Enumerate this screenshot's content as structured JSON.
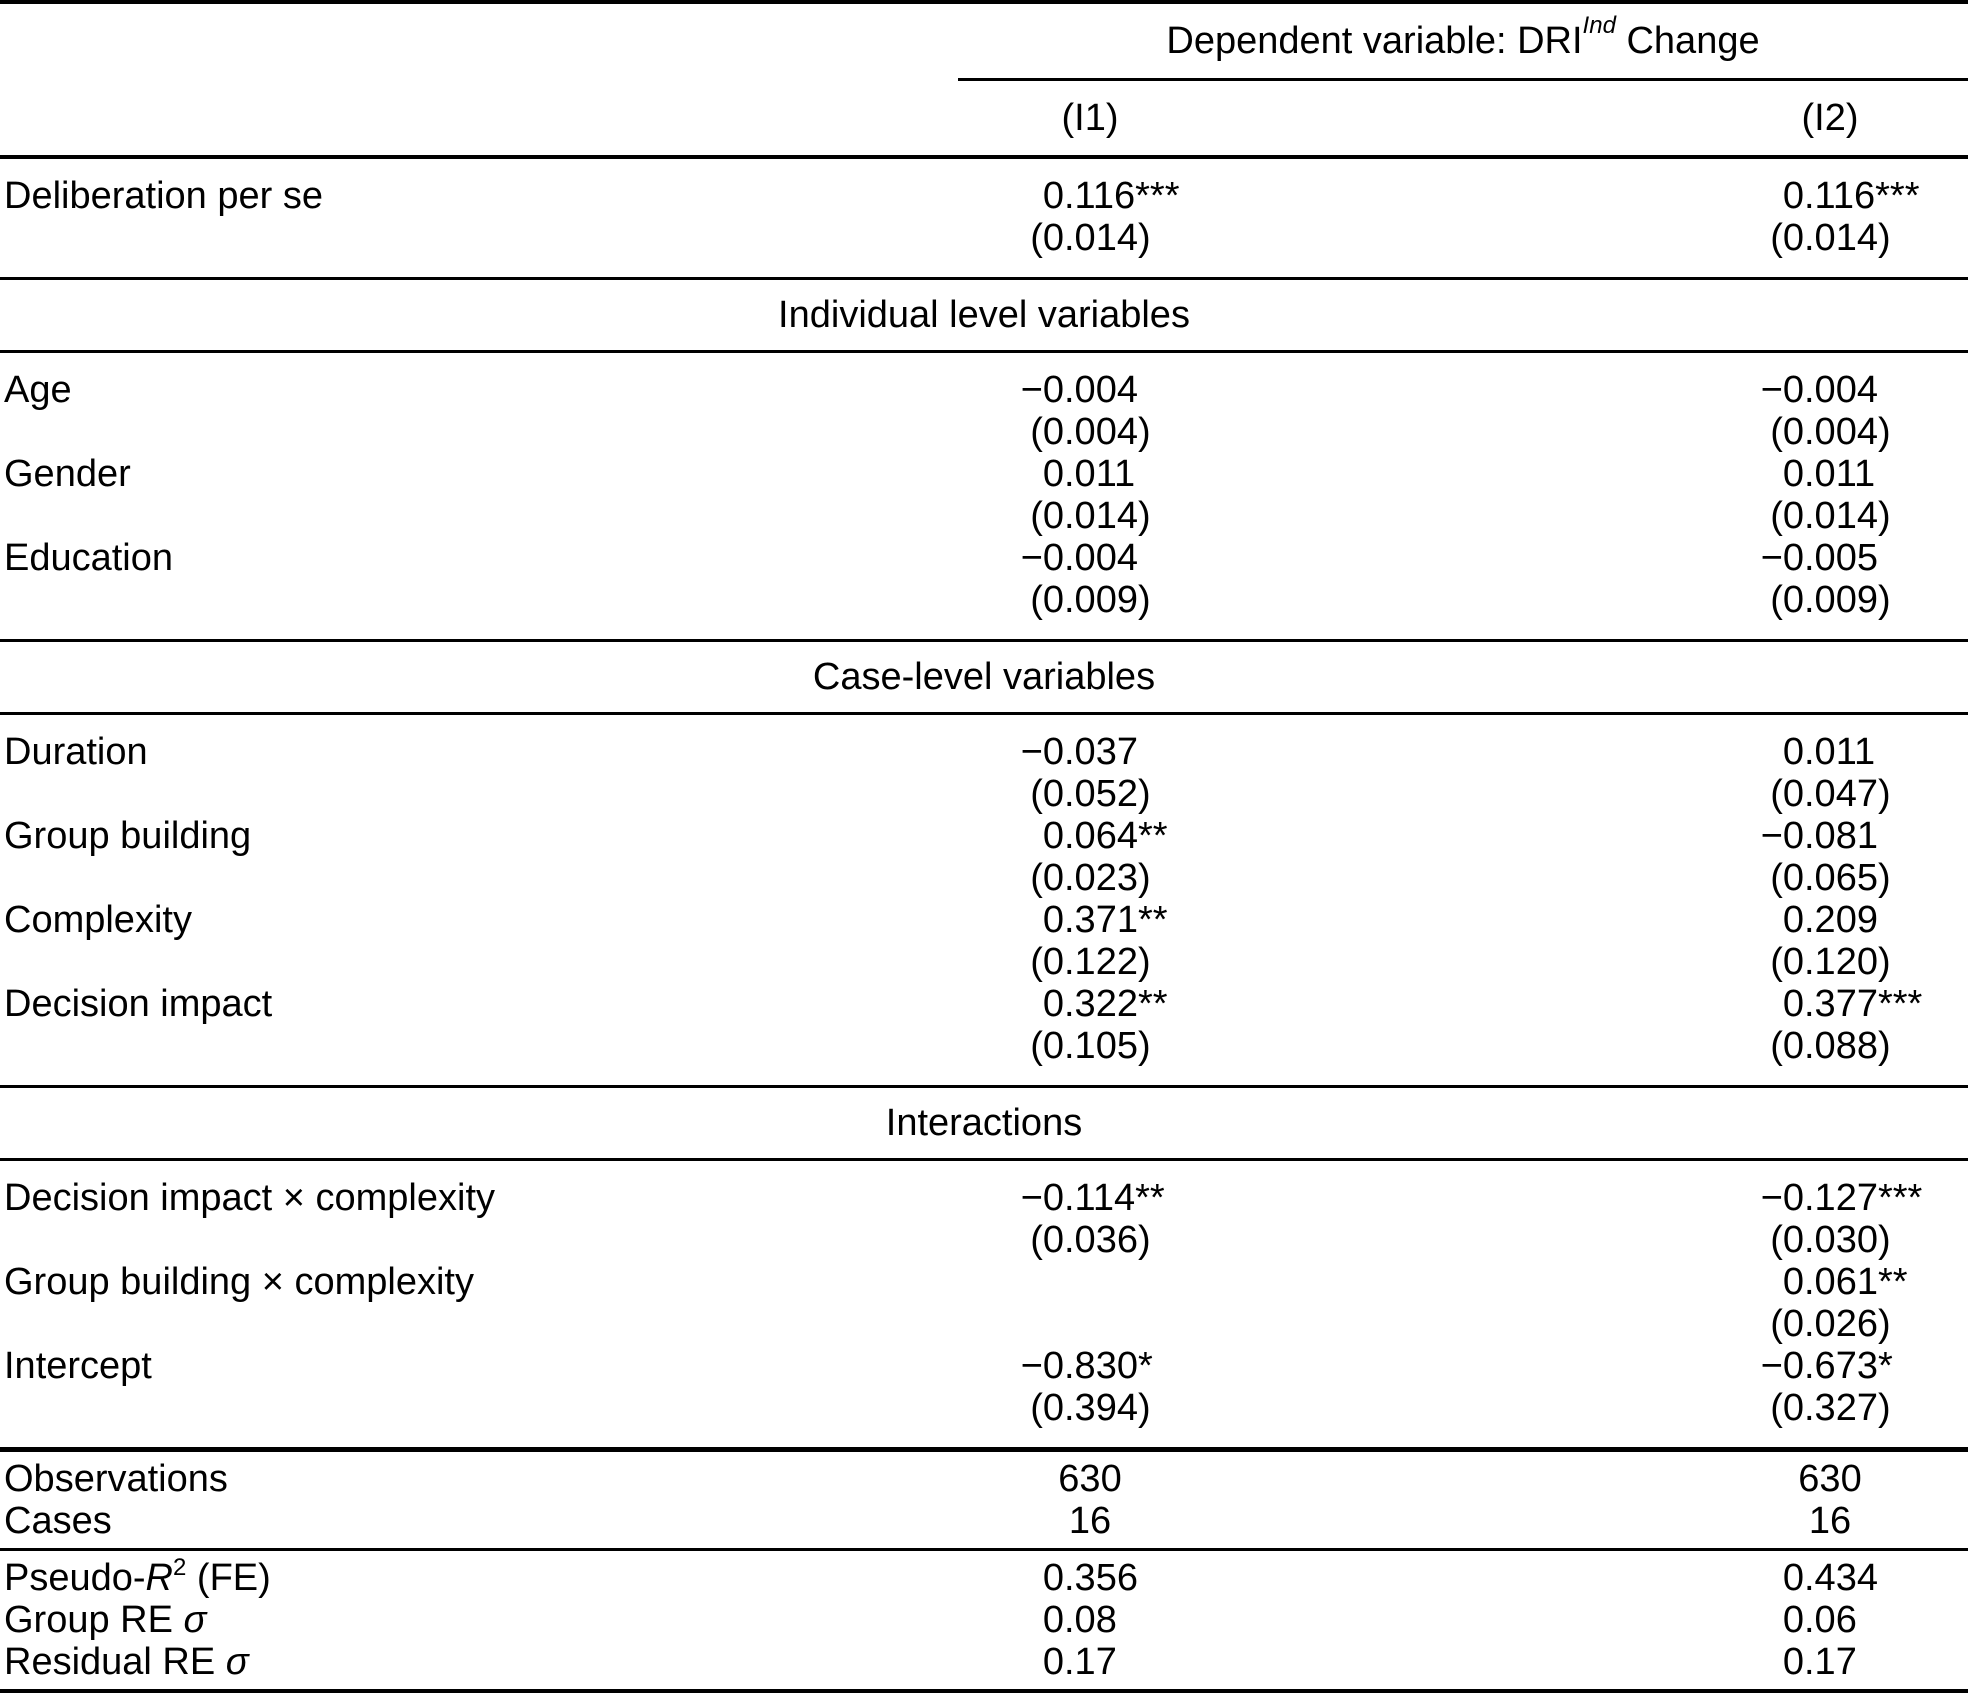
{
  "header": {
    "dependent_variable_prefix": "Dependent variable: DRI",
    "dependent_variable_sup": "Ind",
    "dependent_variable_suffix": " Change",
    "model_labels": [
      "(I1)",
      "(I2)"
    ]
  },
  "section_titles": {
    "individual": "Individual level variables",
    "case": "Case-level variables",
    "interactions": "Interactions"
  },
  "coef_blocks": {
    "deliberation": [
      {
        "label": "Deliberation per se",
        "cells": [
          {
            "est": "0.116",
            "stars": "***",
            "se": "0.014"
          },
          {
            "est": "0.116",
            "stars": "***",
            "se": "0.014"
          }
        ]
      }
    ],
    "individual": [
      {
        "label": "Age",
        "cells": [
          {
            "est": "−0.004",
            "stars": "",
            "se": "0.004"
          },
          {
            "est": "−0.004",
            "stars": "",
            "se": "0.004"
          }
        ]
      },
      {
        "label": "Gender",
        "cells": [
          {
            "est": "0.011",
            "stars": "",
            "se": "0.014"
          },
          {
            "est": "0.011",
            "stars": "",
            "se": "0.014"
          }
        ]
      },
      {
        "label": "Education",
        "cells": [
          {
            "est": "−0.004",
            "stars": "",
            "se": "0.009"
          },
          {
            "est": "−0.005",
            "stars": "",
            "se": "0.009"
          }
        ]
      }
    ],
    "case": [
      {
        "label": "Duration",
        "cells": [
          {
            "est": "−0.037",
            "stars": "",
            "se": "0.052"
          },
          {
            "est": "0.011",
            "stars": "",
            "se": "0.047"
          }
        ]
      },
      {
        "label": "Group building",
        "cells": [
          {
            "est": "0.064",
            "stars": "**",
            "se": "0.023"
          },
          {
            "est": "−0.081",
            "stars": "",
            "se": "0.065"
          }
        ]
      },
      {
        "label": "Complexity",
        "cells": [
          {
            "est": "0.371",
            "stars": "**",
            "se": "0.122"
          },
          {
            "est": "0.209",
            "stars": "",
            "se": "0.120"
          }
        ]
      },
      {
        "label": "Decision impact",
        "cells": [
          {
            "est": "0.322",
            "stars": "**",
            "se": "0.105"
          },
          {
            "est": "0.377",
            "stars": "***",
            "se": "0.088"
          }
        ]
      }
    ],
    "interactions": [
      {
        "label": "Decision impact × complexity",
        "cells": [
          {
            "est": "−0.114",
            "stars": "**",
            "se": "0.036"
          },
          {
            "est": "−0.127",
            "stars": "***",
            "se": "0.030"
          }
        ]
      },
      {
        "label": "Group building × complexity",
        "cells": [
          null,
          {
            "est": "0.061",
            "stars": "**",
            "se": "0.026"
          }
        ]
      },
      {
        "label": "Intercept",
        "cells": [
          {
            "est": "−0.830",
            "stars": "*",
            "se": "0.394"
          },
          {
            "est": "−0.673",
            "stars": "*",
            "se": "0.327"
          }
        ]
      }
    ]
  },
  "stat_blocks": {
    "sample": [
      {
        "label": "Observations",
        "values": [
          "630",
          "630"
        ]
      },
      {
        "label": "Cases",
        "values": [
          "16",
          "16"
        ]
      }
    ],
    "fit": [
      {
        "label_segments": [
          {
            "t": "Pseudo-"
          },
          {
            "t": "R",
            "i": true
          },
          {
            "t": "2",
            "sup": true
          },
          {
            "t": " (FE)"
          }
        ],
        "values": [
          "0.356",
          "0.434"
        ]
      },
      {
        "label_segments": [
          {
            "t": "Group RE "
          },
          {
            "t": "σ",
            "i": true
          }
        ],
        "values": [
          "0.08",
          "0.06"
        ]
      },
      {
        "label_segments": [
          {
            "t": "Residual RE "
          },
          {
            "t": "σ",
            "i": true
          }
        ],
        "values": [
          "0.17",
          "0.17"
        ]
      }
    ]
  }
}
